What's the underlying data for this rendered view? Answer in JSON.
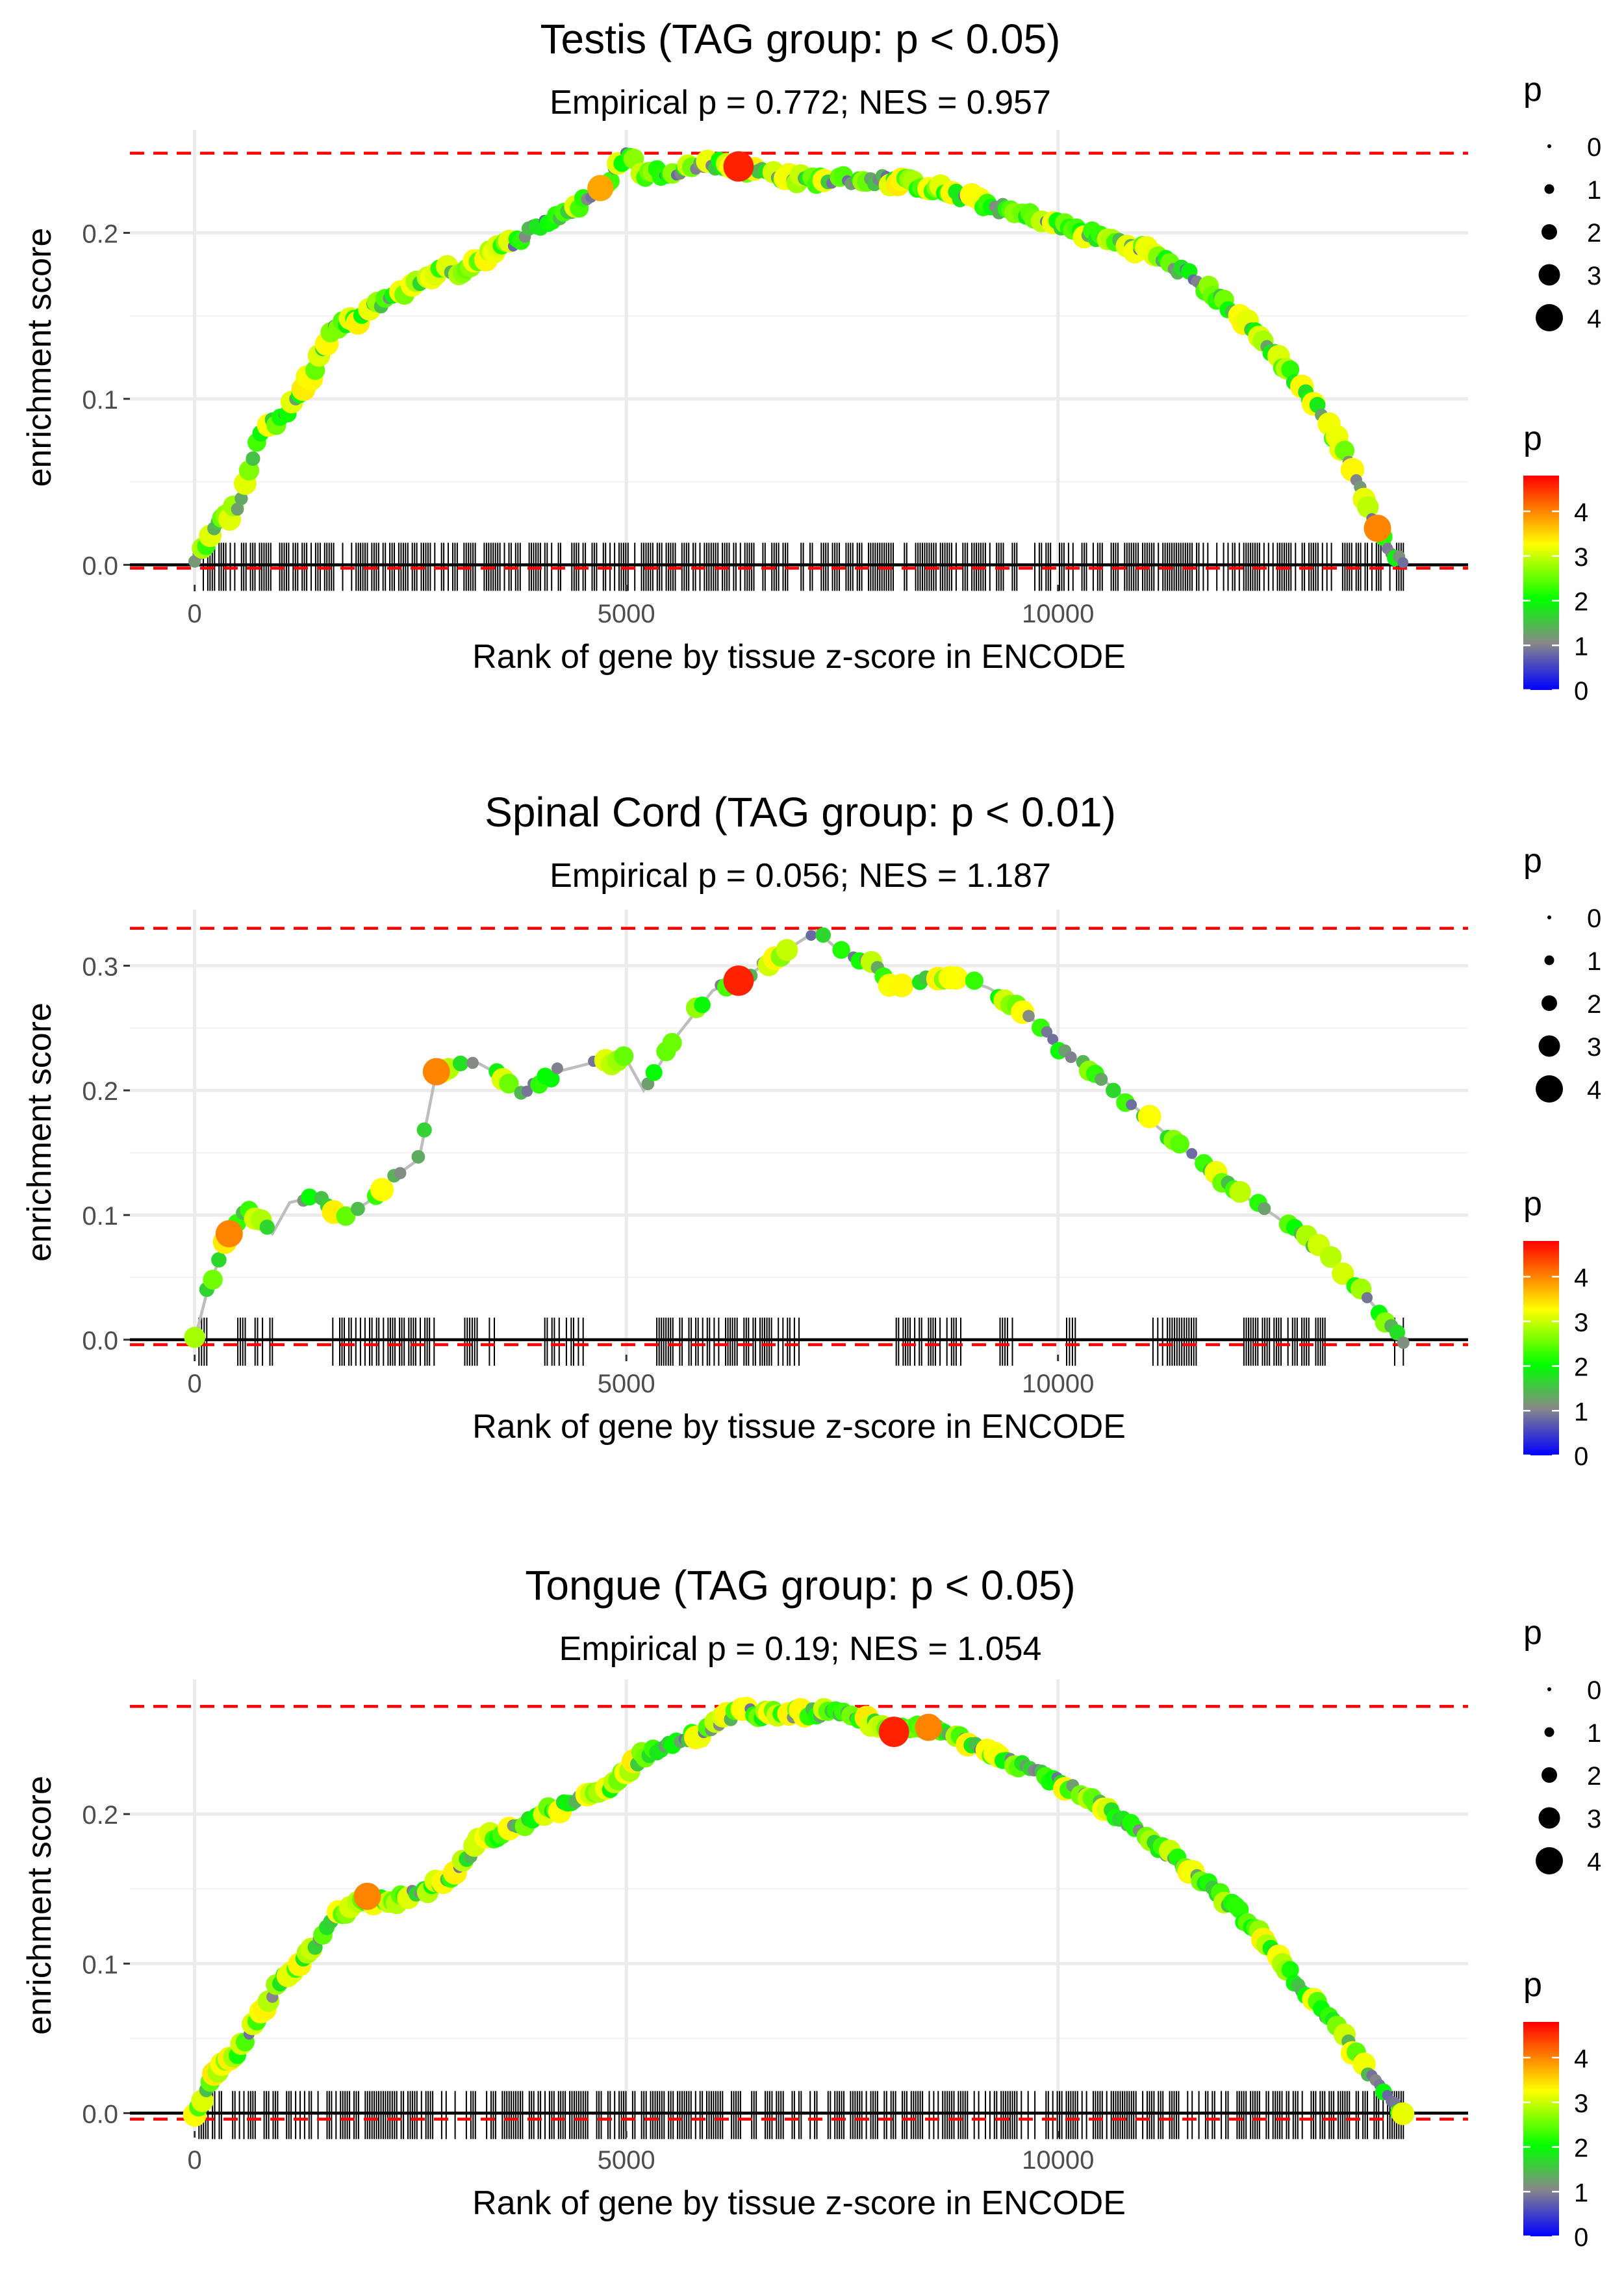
{
  "shared": {
    "xlabel": "Rank of gene by tissue z-score in ENCODE",
    "ylabel": "enrichment score",
    "legend_size_title": "p",
    "legend_color_title": "p",
    "legend_size_labels": [
      "0",
      "1",
      "2",
      "3",
      "4"
    ],
    "legend_color_labels": [
      "4",
      "3",
      "2",
      "1",
      "0"
    ],
    "colors": {
      "dashed_ref": "#ff0000",
      "zero_line": "#000000",
      "es_line": "#bdbdbd",
      "grid": "#ebebeb",
      "gradient": [
        "#0000ff",
        "#888888",
        "#00ff00",
        "#ffff00",
        "#ff0000"
      ]
    }
  },
  "chart_data": [
    {
      "type": "line",
      "title": "Testis (TAG group: p < 0.05)",
      "subtitle": "Empirical p = 0.772; NES = 0.957",
      "xlim": [
        -750,
        14750
      ],
      "ylim": [
        -0.012,
        0.262
      ],
      "x_ticks": [
        0,
        5000,
        10000
      ],
      "x_tick_labels": [
        "0",
        "5000",
        "10000"
      ],
      "y_ticks": [
        0.0,
        0.1,
        0.2
      ],
      "y_tick_labels": [
        "0.0",
        "0.1",
        "0.2"
      ],
      "ref_max": 0.248,
      "ref_min": -0.002,
      "curve": [
        [
          0,
          0
        ],
        [
          200,
          0.02
        ],
        [
          500,
          0.035
        ],
        [
          700,
          0.07
        ],
        [
          800,
          0.085
        ],
        [
          1000,
          0.087
        ],
        [
          1200,
          0.1
        ],
        [
          1400,
          0.12
        ],
        [
          1600,
          0.142
        ],
        [
          1900,
          0.148
        ],
        [
          2200,
          0.16
        ],
        [
          2500,
          0.167
        ],
        [
          2800,
          0.177
        ],
        [
          3100,
          0.177
        ],
        [
          3300,
          0.185
        ],
        [
          3600,
          0.192
        ],
        [
          4000,
          0.205
        ],
        [
          4400,
          0.215
        ],
        [
          4700,
          0.225
        ],
        [
          5000,
          0.248
        ],
        [
          5200,
          0.235
        ],
        [
          5600,
          0.238
        ],
        [
          6000,
          0.242
        ],
        [
          6500,
          0.238
        ],
        [
          7000,
          0.232
        ],
        [
          7500,
          0.232
        ],
        [
          8000,
          0.232
        ],
        [
          8500,
          0.228
        ],
        [
          9000,
          0.22
        ],
        [
          9500,
          0.212
        ],
        [
          10000,
          0.205
        ],
        [
          10500,
          0.197
        ],
        [
          11000,
          0.19
        ],
        [
          11500,
          0.175
        ],
        [
          12000,
          0.155
        ],
        [
          12500,
          0.128
        ],
        [
          13000,
          0.095
        ],
        [
          13400,
          0.06
        ],
        [
          13700,
          0.02
        ],
        [
          14000,
          0
        ]
      ],
      "highlights": [
        {
          "x": 4700,
          "y": 0.227,
          "p": 3.8
        },
        {
          "x": 6300,
          "y": 0.24,
          "p": 4.6
        },
        {
          "x": 13700,
          "y": 0.022,
          "p": 4.0
        }
      ],
      "tick_segments": [
        [
          100,
          14000
        ]
      ]
    },
    {
      "type": "line",
      "title": "Spinal Cord (TAG group: p < 0.01)",
      "subtitle": "Empirical p = 0.056; NES = 1.187",
      "xlim": [
        -750,
        14750
      ],
      "ylim": [
        -0.012,
        0.345
      ],
      "x_ticks": [
        0,
        5000,
        10000
      ],
      "x_tick_labels": [
        "0",
        "5000",
        "10000"
      ],
      "y_ticks": [
        0.0,
        0.1,
        0.2,
        0.3
      ],
      "y_tick_labels": [
        "0.0",
        "0.1",
        "0.2",
        "0.3"
      ],
      "ref_max": 0.33,
      "ref_min": -0.004,
      "curve": [
        [
          0,
          0
        ],
        [
          150,
          0.04
        ],
        [
          400,
          0.085
        ],
        [
          600,
          0.105
        ],
        [
          900,
          0.085
        ],
        [
          1100,
          0.11
        ],
        [
          1400,
          0.115
        ],
        [
          1700,
          0.098
        ],
        [
          2000,
          0.11
        ],
        [
          2300,
          0.13
        ],
        [
          2600,
          0.145
        ],
        [
          2800,
          0.215
        ],
        [
          3200,
          0.225
        ],
        [
          3600,
          0.21
        ],
        [
          3800,
          0.198
        ],
        [
          4200,
          0.215
        ],
        [
          4600,
          0.222
        ],
        [
          5000,
          0.225
        ],
        [
          5200,
          0.2
        ],
        [
          5600,
          0.245
        ],
        [
          6000,
          0.28
        ],
        [
          6400,
          0.292
        ],
        [
          6800,
          0.31
        ],
        [
          7200,
          0.328
        ],
        [
          7500,
          0.31
        ],
        [
          7800,
          0.305
        ],
        [
          8100,
          0.28
        ],
        [
          8500,
          0.29
        ],
        [
          8800,
          0.292
        ],
        [
          9200,
          0.282
        ],
        [
          9600,
          0.265
        ],
        [
          10000,
          0.235
        ],
        [
          10500,
          0.21
        ],
        [
          11000,
          0.18
        ],
        [
          11500,
          0.15
        ],
        [
          12000,
          0.122
        ],
        [
          12500,
          0.1
        ],
        [
          13000,
          0.075
        ],
        [
          13500,
          0.04
        ],
        [
          14000,
          0
        ]
      ],
      "highlights": [
        {
          "x": 400,
          "y": 0.085,
          "p": 4.0
        },
        {
          "x": 2800,
          "y": 0.215,
          "p": 4.0
        },
        {
          "x": 6300,
          "y": 0.288,
          "p": 4.6
        }
      ],
      "tick_segments": [
        [
          50,
          200
        ],
        [
          500,
          900
        ],
        [
          1600,
          2800
        ],
        [
          3100,
          3500
        ],
        [
          4000,
          4500
        ],
        [
          5300,
          7000
        ],
        [
          8100,
          8900
        ],
        [
          9300,
          9500
        ],
        [
          10100,
          10200
        ],
        [
          11100,
          11600
        ],
        [
          12100,
          13200
        ],
        [
          13900,
          14000
        ]
      ]
    },
    {
      "type": "line",
      "title": "Tongue (TAG group: p < 0.05)",
      "subtitle": "Empirical p = 0.19; NES = 1.054",
      "xlim": [
        -750,
        14750
      ],
      "ylim": [
        -0.012,
        0.29
      ],
      "x_ticks": [
        0,
        5000,
        10000
      ],
      "x_tick_labels": [
        "0",
        "5000",
        "10000"
      ],
      "y_ticks": [
        0.0,
        0.1,
        0.2
      ],
      "y_tick_labels": [
        "0.0",
        "0.1",
        "0.2"
      ],
      "ref_max": 0.272,
      "ref_min": -0.004,
      "curve": [
        [
          0,
          0
        ],
        [
          200,
          0.025
        ],
        [
          500,
          0.04
        ],
        [
          800,
          0.07
        ],
        [
          1000,
          0.09
        ],
        [
          1300,
          0.105
        ],
        [
          1600,
          0.132
        ],
        [
          2000,
          0.142
        ],
        [
          2300,
          0.142
        ],
        [
          2700,
          0.15
        ],
        [
          3000,
          0.158
        ],
        [
          3300,
          0.182
        ],
        [
          3700,
          0.19
        ],
        [
          4000,
          0.2
        ],
        [
          4400,
          0.208
        ],
        [
          4800,
          0.218
        ],
        [
          5200,
          0.24
        ],
        [
          5600,
          0.248
        ],
        [
          6000,
          0.258
        ],
        [
          6300,
          0.27
        ],
        [
          6600,
          0.266
        ],
        [
          7000,
          0.268
        ],
        [
          7400,
          0.267
        ],
        [
          7800,
          0.262
        ],
        [
          8100,
          0.255
        ],
        [
          8500,
          0.258
        ],
        [
          9000,
          0.248
        ],
        [
          9500,
          0.235
        ],
        [
          10000,
          0.222
        ],
        [
          10500,
          0.205
        ],
        [
          11000,
          0.185
        ],
        [
          11500,
          0.165
        ],
        [
          12000,
          0.14
        ],
        [
          12400,
          0.115
        ],
        [
          12800,
          0.085
        ],
        [
          13200,
          0.06
        ],
        [
          13500,
          0.035
        ],
        [
          13800,
          0.01
        ],
        [
          14000,
          0
        ]
      ],
      "highlights": [
        {
          "x": 2000,
          "y": 0.145,
          "p": 4.0
        },
        {
          "x": 8100,
          "y": 0.255,
          "p": 4.6
        },
        {
          "x": 8500,
          "y": 0.258,
          "p": 4.0
        }
      ],
      "tick_segments": [
        [
          50,
          14000
        ]
      ]
    }
  ]
}
